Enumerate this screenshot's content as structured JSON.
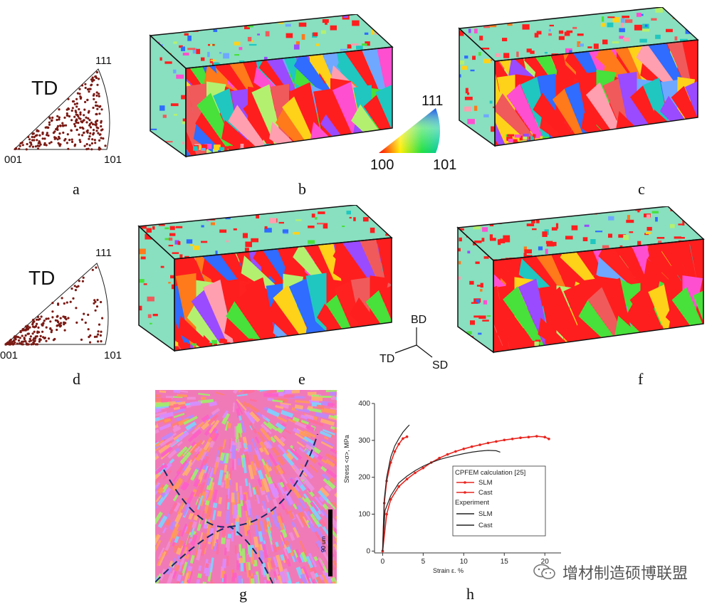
{
  "pole_figures": {
    "a": {
      "title": "TD",
      "corner_001": "001",
      "corner_101": "101",
      "corner_111": "111"
    },
    "d": {
      "title": "TD",
      "corner_001": "001",
      "corner_101": "101",
      "corner_111": "111"
    }
  },
  "color_key": {
    "top": "111",
    "left": "100",
    "right": "101"
  },
  "axes_triad": {
    "up": "BD",
    "left": "TD",
    "right": "SD"
  },
  "panel_labels": {
    "a": "a",
    "b": "b",
    "c": "c",
    "d": "d",
    "e": "e",
    "f": "f",
    "g": "g",
    "h": "h"
  },
  "micrograph": {
    "scale_bar": "90 um"
  },
  "colors": {
    "slm_calc": "#e8251f",
    "experiment": "#222222",
    "grain_palette": [
      "#ff2020",
      "#ff7a1a",
      "#ffd21a",
      "#48e03a",
      "#1fc7c0",
      "#2f6cff",
      "#9a4bff",
      "#ff4fd1",
      "#ff9fb0",
      "#b4f070",
      "#f05a5a",
      "#6fa8ff"
    ]
  },
  "chart_data": {
    "type": "line",
    "xlabel": "Strain ε, %",
    "ylabel": "Stress <σ>, MPa",
    "xlim": [
      -1,
      22
    ],
    "ylim": [
      -5,
      400
    ],
    "xticks": [
      0,
      5,
      10,
      15,
      20
    ],
    "yticks": [
      0,
      100,
      200,
      300,
      400
    ],
    "legend": {
      "placement": "center-right",
      "group1": "CPFEM calculation [25]",
      "group2": "Experiment",
      "entries": [
        "SLM",
        "Cast",
        "SLM",
        "Cast"
      ]
    },
    "series": [
      {
        "name": "SLM",
        "group": "CPFEM calculation [25]",
        "x": [
          0,
          0.2,
          0.5,
          1.0,
          1.5,
          2.0,
          2.5,
          3.0
        ],
        "y": [
          0,
          130,
          190,
          240,
          270,
          290,
          305,
          310
        ]
      },
      {
        "name": "Cast",
        "group": "CPFEM calculation [25]",
        "x": [
          0,
          0.5,
          1,
          2,
          3,
          4,
          5,
          6,
          7,
          8,
          9,
          10,
          11,
          12,
          13,
          14,
          15,
          16,
          17,
          18,
          19,
          20,
          20.5
        ],
        "y": [
          0,
          100,
          140,
          175,
          195,
          212,
          225,
          240,
          252,
          262,
          270,
          277,
          283,
          288,
          293,
          297,
          301,
          304,
          307,
          309,
          311,
          309,
          304
        ]
      },
      {
        "name": "SLM",
        "group": "Experiment",
        "x": [
          0,
          0.2,
          0.5,
          1.0,
          1.5,
          2.0,
          2.5,
          3.0,
          3.3
        ],
        "y": [
          0,
          140,
          200,
          255,
          285,
          305,
          322,
          335,
          342
        ]
      },
      {
        "name": "Cast",
        "group": "Experiment",
        "x": [
          0,
          0.3,
          1,
          2,
          3,
          4,
          5,
          6,
          7,
          8,
          9,
          10,
          11,
          12,
          13,
          14,
          14.5
        ],
        "y": [
          0,
          110,
          150,
          185,
          203,
          218,
          230,
          240,
          248,
          254,
          259,
          264,
          268,
          271,
          273,
          272,
          268
        ]
      }
    ]
  },
  "watermark": "增材制造硕博联盟"
}
